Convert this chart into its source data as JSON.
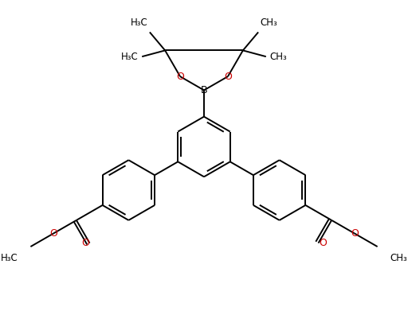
{
  "background_color": "#ffffff",
  "bond_color": "#000000",
  "oxygen_color": "#cc0000",
  "text_color": "#000000",
  "line_width": 1.4,
  "figsize": [
    5.12,
    3.91
  ],
  "dpi": 100,
  "xlim": [
    0,
    10.24
  ],
  "ylim": [
    0,
    7.82
  ]
}
